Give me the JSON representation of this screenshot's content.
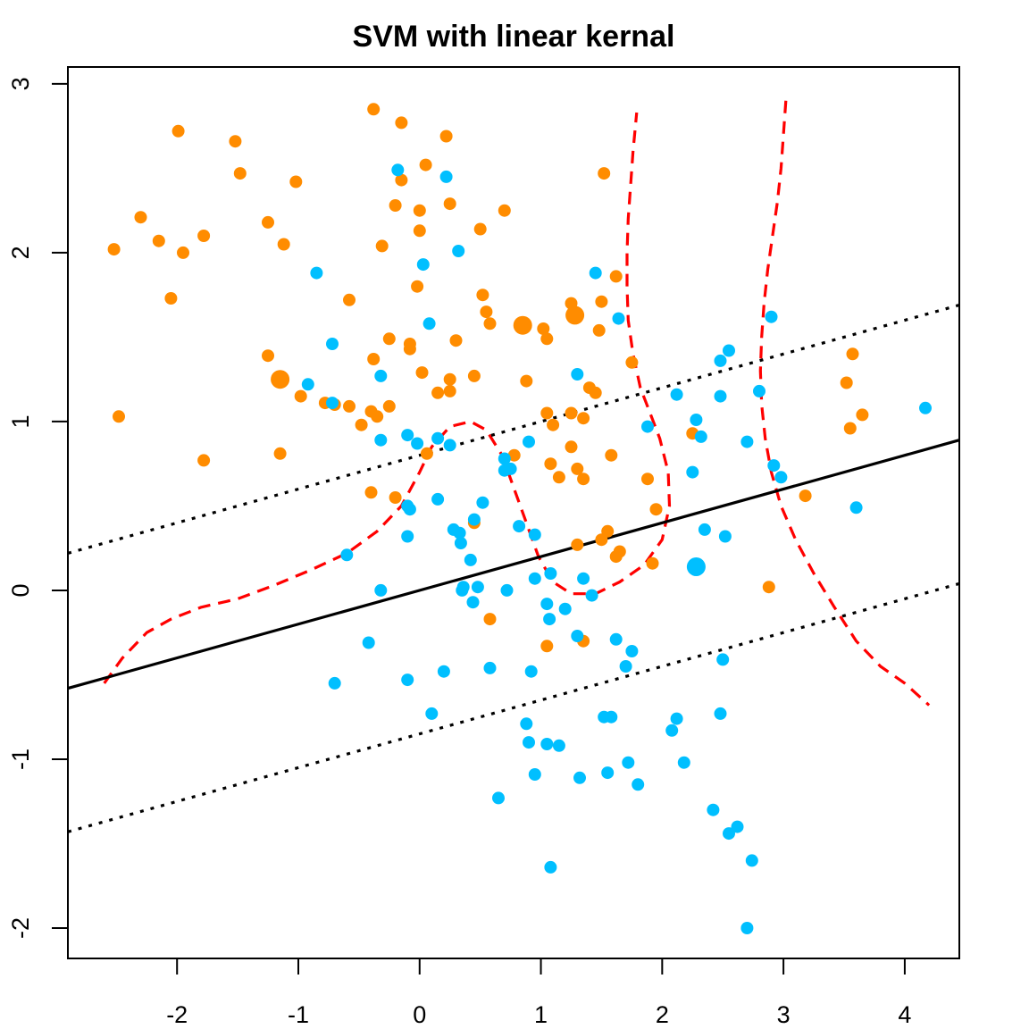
{
  "chart_data": {
    "type": "scatter",
    "title": "SVM with linear kernal",
    "xlabel": "",
    "ylabel": "",
    "xlim": [
      -2.9,
      4.45
    ],
    "ylim": [
      -2.18,
      3.1
    ],
    "x_ticks": [
      -2,
      -1,
      0,
      1,
      2,
      3,
      4
    ],
    "y_ticks": [
      -2,
      -1,
      0,
      1,
      2,
      3
    ],
    "grid": false,
    "legend": "none",
    "colors": {
      "orange_class": "#FF8C00",
      "blue_class": "#00BFFF",
      "decision_boundary": "#000000",
      "margins": "#000000",
      "bayes_boundary": "#FF0000"
    },
    "lines": {
      "decision_boundary": {
        "slope": 0.2,
        "intercept": 0.0
      },
      "upper_margin": {
        "slope": 0.2,
        "intercept": 0.8
      },
      "lower_margin": {
        "slope": 0.2,
        "intercept": -0.85
      }
    },
    "bayes_boundary_curves": [
      [
        [
          -2.6,
          -0.55
        ],
        [
          -2.45,
          -0.4
        ],
        [
          -2.25,
          -0.25
        ],
        [
          -2.05,
          -0.17
        ],
        [
          -1.8,
          -0.1
        ],
        [
          -1.5,
          -0.05
        ],
        [
          -1.2,
          0.03
        ],
        [
          -0.9,
          0.12
        ],
        [
          -0.6,
          0.22
        ],
        [
          -0.35,
          0.35
        ],
        [
          -0.15,
          0.5
        ],
        [
          0.0,
          0.7
        ],
        [
          0.1,
          0.85
        ],
        [
          0.25,
          0.97
        ],
        [
          0.42,
          1.0
        ],
        [
          0.55,
          0.95
        ],
        [
          0.68,
          0.8
        ],
        [
          0.78,
          0.6
        ],
        [
          0.88,
          0.4
        ],
        [
          0.98,
          0.2
        ],
        [
          1.1,
          0.05
        ],
        [
          1.25,
          -0.02
        ],
        [
          1.45,
          -0.02
        ],
        [
          1.65,
          0.05
        ],
        [
          1.85,
          0.15
        ],
        [
          2.0,
          0.3
        ],
        [
          2.06,
          0.5
        ],
        [
          2.05,
          0.7
        ],
        [
          1.98,
          0.9
        ],
        [
          1.9,
          1.05
        ],
        [
          1.82,
          1.2
        ],
        [
          1.76,
          1.4
        ],
        [
          1.72,
          1.6
        ],
        [
          1.71,
          1.8
        ],
        [
          1.71,
          2.0
        ],
        [
          1.72,
          2.2
        ],
        [
          1.74,
          2.4
        ],
        [
          1.76,
          2.6
        ],
        [
          1.79,
          2.83
        ]
      ],
      [
        [
          3.02,
          2.9
        ],
        [
          3.0,
          2.7
        ],
        [
          2.98,
          2.5
        ],
        [
          2.95,
          2.3
        ],
        [
          2.91,
          2.1
        ],
        [
          2.87,
          1.9
        ],
        [
          2.84,
          1.7
        ],
        [
          2.82,
          1.5
        ],
        [
          2.81,
          1.3
        ],
        [
          2.82,
          1.1
        ],
        [
          2.85,
          0.9
        ],
        [
          2.9,
          0.7
        ],
        [
          2.98,
          0.5
        ],
        [
          3.1,
          0.3
        ],
        [
          3.25,
          0.1
        ],
        [
          3.42,
          -0.1
        ],
        [
          3.6,
          -0.3
        ],
        [
          3.8,
          -0.45
        ],
        [
          4.0,
          -0.55
        ],
        [
          4.2,
          -0.68
        ]
      ]
    ],
    "series": [
      {
        "color": "#FF8C00",
        "points": [
          [
            -2.52,
            2.02
          ],
          [
            -2.48,
            1.03
          ],
          [
            -2.3,
            2.21
          ],
          [
            -2.15,
            2.07
          ],
          [
            -2.05,
            1.73
          ],
          [
            -1.99,
            2.72
          ],
          [
            -1.95,
            2.0
          ],
          [
            -1.78,
            2.1
          ],
          [
            -1.78,
            0.77
          ],
          [
            -1.52,
            2.66
          ],
          [
            -1.48,
            2.47
          ],
          [
            -1.25,
            2.18
          ],
          [
            -1.25,
            1.39
          ],
          [
            -1.15,
            0.81
          ],
          [
            -1.12,
            2.05
          ],
          [
            -1.02,
            2.42
          ],
          [
            -0.98,
            1.15
          ],
          [
            -0.78,
            1.11
          ],
          [
            -0.7,
            1.1
          ],
          [
            -0.58,
            1.72
          ],
          [
            -0.58,
            1.09
          ],
          [
            -0.48,
            0.98
          ],
          [
            -0.4,
            1.06
          ],
          [
            -0.38,
            1.37
          ],
          [
            -0.35,
            1.03
          ],
          [
            -0.31,
            2.04
          ],
          [
            -0.25,
            1.49
          ],
          [
            -0.25,
            1.09
          ],
          [
            -0.38,
            2.85
          ],
          [
            -0.2,
            2.28
          ],
          [
            -0.15,
            2.77
          ],
          [
            -0.15,
            2.43
          ],
          [
            -0.08,
            1.46
          ],
          [
            -0.08,
            1.43
          ],
          [
            -0.02,
            1.8
          ],
          [
            0.0,
            2.25
          ],
          [
            0.0,
            2.13
          ],
          [
            0.02,
            1.29
          ],
          [
            0.05,
            2.52
          ],
          [
            0.06,
            0.81
          ],
          [
            0.15,
            1.17
          ],
          [
            0.22,
            2.69
          ],
          [
            0.25,
            1.25
          ],
          [
            0.25,
            1.18
          ],
          [
            0.25,
            2.29
          ],
          [
            0.3,
            1.48
          ],
          [
            0.45,
            1.27
          ],
          [
            0.5,
            2.14
          ],
          [
            0.52,
            1.75
          ],
          [
            0.55,
            1.65
          ],
          [
            0.58,
            1.58
          ],
          [
            0.7,
            2.25
          ],
          [
            0.78,
            0.8
          ],
          [
            0.88,
            1.24
          ],
          [
            1.02,
            1.55
          ],
          [
            1.05,
            1.49
          ],
          [
            1.05,
            1.05
          ],
          [
            1.08,
            0.75
          ],
          [
            1.1,
            0.98
          ],
          [
            1.15,
            0.67
          ],
          [
            1.25,
            1.05
          ],
          [
            1.25,
            0.85
          ],
          [
            1.25,
            1.7
          ],
          [
            1.3,
            0.27
          ],
          [
            1.3,
            0.72
          ],
          [
            1.35,
            1.02
          ],
          [
            1.35,
            0.66
          ],
          [
            1.4,
            1.2
          ],
          [
            1.45,
            1.17
          ],
          [
            1.48,
            1.54
          ],
          [
            1.5,
            0.3
          ],
          [
            1.5,
            1.71
          ],
          [
            1.52,
            2.47
          ],
          [
            1.55,
            0.35
          ],
          [
            1.58,
            0.8
          ],
          [
            1.62,
            0.2
          ],
          [
            1.62,
            1.86
          ],
          [
            1.65,
            0.23
          ],
          [
            1.75,
            1.35
          ],
          [
            1.88,
            0.66
          ],
          [
            1.92,
            0.16
          ],
          [
            1.95,
            0.48
          ],
          [
            2.25,
            0.93
          ],
          [
            2.88,
            0.02
          ],
          [
            3.18,
            0.56
          ],
          [
            3.52,
            1.23
          ],
          [
            3.55,
            0.96
          ],
          [
            3.57,
            1.4
          ],
          [
            3.65,
            1.04
          ],
          [
            1.05,
            -0.33
          ],
          [
            1.35,
            -0.3
          ],
          [
            0.58,
            -0.17
          ],
          [
            0.45,
            0.4
          ],
          [
            -0.2,
            0.55
          ],
          [
            -0.4,
            0.58
          ]
        ],
        "large_points": [
          [
            -1.15,
            1.25
          ],
          [
            0.85,
            1.57
          ],
          [
            1.28,
            1.63
          ]
        ]
      },
      {
        "color": "#00BFFF",
        "points": [
          [
            -0.85,
            1.88
          ],
          [
            -0.92,
            1.22
          ],
          [
            -0.72,
            1.46
          ],
          [
            -0.72,
            1.11
          ],
          [
            -0.6,
            0.21
          ],
          [
            -0.7,
            -0.55
          ],
          [
            -0.42,
            -0.31
          ],
          [
            -0.32,
            0.0
          ],
          [
            -0.32,
            0.89
          ],
          [
            -0.32,
            1.27
          ],
          [
            -0.18,
            2.49
          ],
          [
            -0.1,
            0.92
          ],
          [
            -0.1,
            0.5
          ],
          [
            -0.1,
            0.32
          ],
          [
            -0.1,
            -0.53
          ],
          [
            -0.08,
            0.48
          ],
          [
            -0.02,
            0.87
          ],
          [
            0.03,
            1.93
          ],
          [
            0.08,
            1.58
          ],
          [
            0.1,
            -0.73
          ],
          [
            0.15,
            0.9
          ],
          [
            0.15,
            0.54
          ],
          [
            0.2,
            -0.48
          ],
          [
            0.22,
            2.45
          ],
          [
            0.25,
            0.86
          ],
          [
            0.28,
            0.36
          ],
          [
            0.32,
            2.01
          ],
          [
            0.33,
            0.34
          ],
          [
            0.34,
            0.28
          ],
          [
            0.35,
            0.0
          ],
          [
            0.36,
            0.02
          ],
          [
            0.42,
            0.18
          ],
          [
            0.44,
            -0.07
          ],
          [
            0.45,
            0.42
          ],
          [
            0.48,
            0.02
          ],
          [
            0.52,
            0.52
          ],
          [
            0.58,
            -0.46
          ],
          [
            0.65,
            -1.23
          ],
          [
            0.7,
            0.78
          ],
          [
            0.7,
            0.71
          ],
          [
            0.72,
            0.0
          ],
          [
            0.75,
            0.72
          ],
          [
            0.82,
            0.38
          ],
          [
            0.88,
            -0.79
          ],
          [
            0.9,
            0.88
          ],
          [
            0.9,
            -0.9
          ],
          [
            0.92,
            -0.48
          ],
          [
            0.95,
            0.33
          ],
          [
            0.95,
            -1.09
          ],
          [
            0.95,
            0.07
          ],
          [
            1.05,
            -0.91
          ],
          [
            1.05,
            -0.08
          ],
          [
            1.07,
            -0.17
          ],
          [
            1.08,
            0.1
          ],
          [
            1.08,
            -1.64
          ],
          [
            1.15,
            -0.92
          ],
          [
            1.2,
            -0.11
          ],
          [
            1.3,
            1.28
          ],
          [
            1.3,
            -0.27
          ],
          [
            1.32,
            -1.11
          ],
          [
            1.35,
            0.07
          ],
          [
            1.42,
            -0.03
          ],
          [
            1.45,
            1.88
          ],
          [
            1.52,
            -0.75
          ],
          [
            1.55,
            -1.08
          ],
          [
            1.58,
            -0.75
          ],
          [
            1.62,
            -0.29
          ],
          [
            1.64,
            1.61
          ],
          [
            1.7,
            -0.45
          ],
          [
            1.72,
            -1.02
          ],
          [
            1.75,
            -0.36
          ],
          [
            1.8,
            -1.15
          ],
          [
            1.88,
            0.97
          ],
          [
            2.08,
            -0.83
          ],
          [
            2.12,
            1.16
          ],
          [
            2.12,
            -0.76
          ],
          [
            2.18,
            -1.02
          ],
          [
            2.25,
            0.7
          ],
          [
            2.28,
            1.01
          ],
          [
            2.32,
            0.91
          ],
          [
            2.35,
            0.36
          ],
          [
            2.42,
            -1.3
          ],
          [
            2.48,
            1.15
          ],
          [
            2.48,
            1.36
          ],
          [
            2.48,
            -0.73
          ],
          [
            2.5,
            -0.41
          ],
          [
            2.52,
            0.32
          ],
          [
            2.55,
            1.42
          ],
          [
            2.55,
            -1.44
          ],
          [
            2.62,
            -1.4
          ],
          [
            2.7,
            0.88
          ],
          [
            2.7,
            -2.0
          ],
          [
            2.74,
            -1.6
          ],
          [
            2.8,
            1.18
          ],
          [
            2.9,
            1.62
          ],
          [
            2.92,
            0.74
          ],
          [
            2.98,
            0.67
          ],
          [
            3.6,
            0.49
          ],
          [
            4.17,
            1.08
          ]
        ],
        "large_points": [
          [
            2.28,
            0.14
          ]
        ]
      }
    ]
  }
}
